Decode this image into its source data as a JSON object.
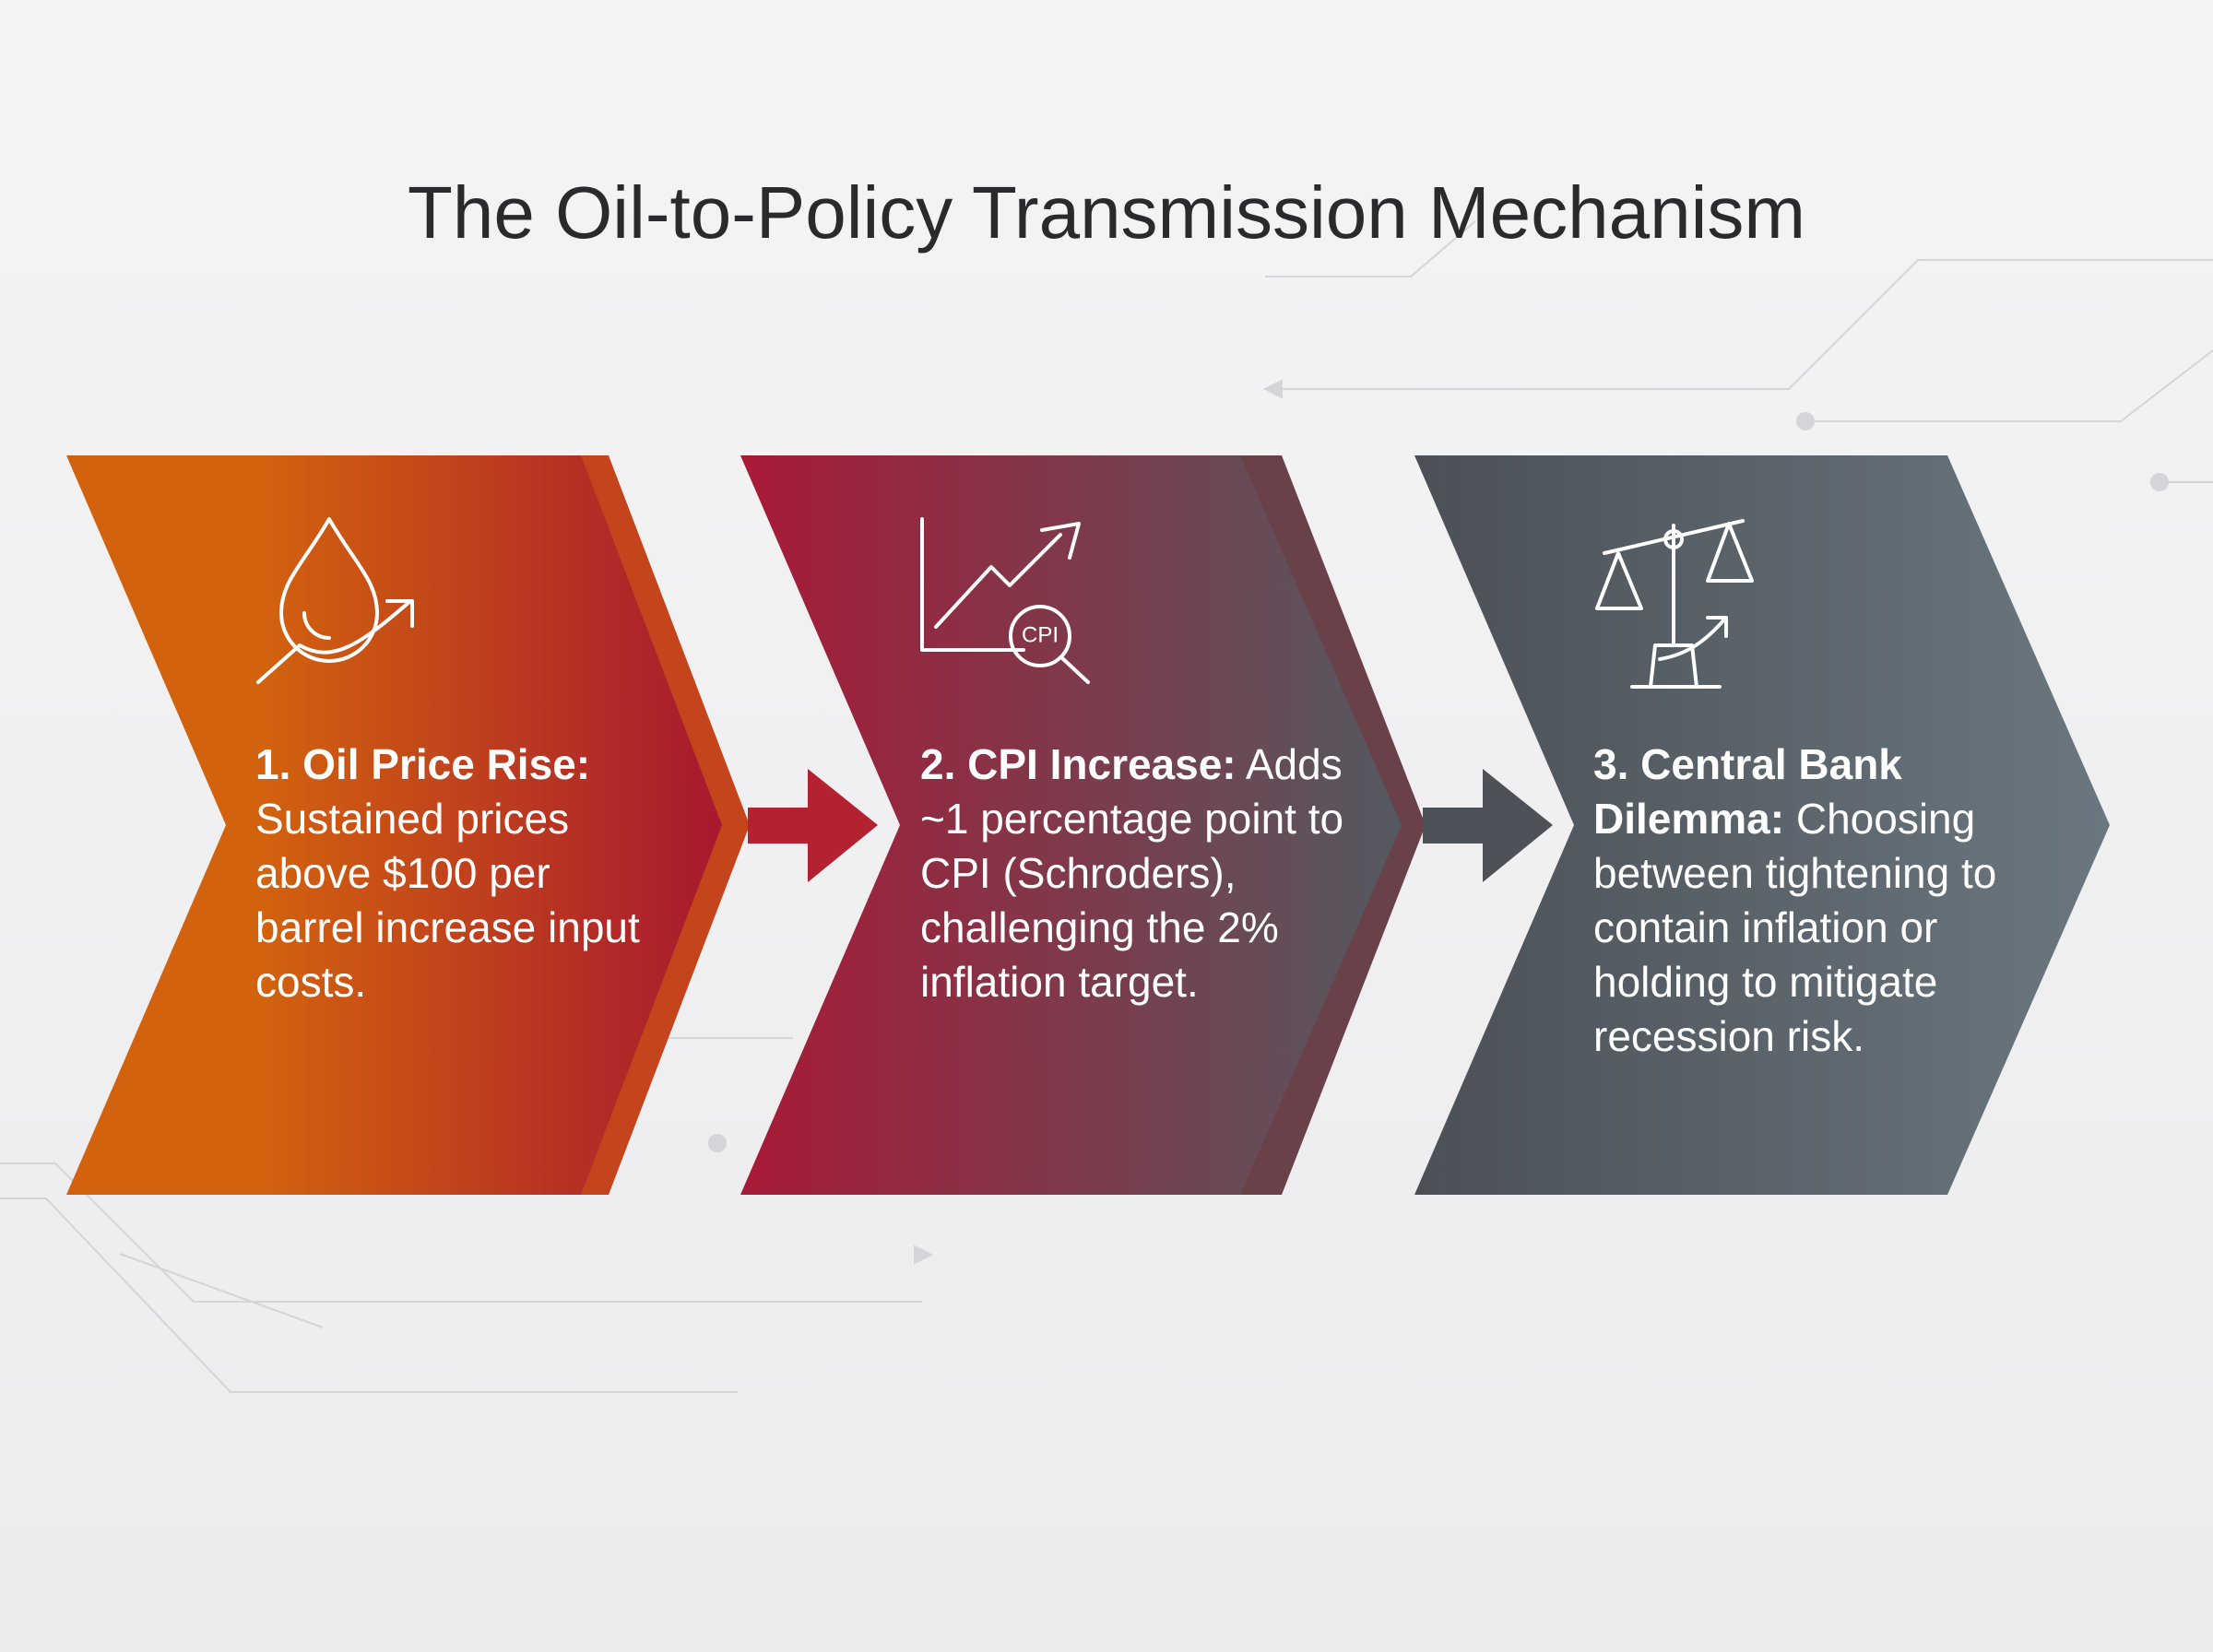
{
  "title": "The Oil-to-Policy Transmission Mechanism",
  "steps": [
    {
      "heading": "1. Oil Price Rise:",
      "body": "Sustained prices above $100 per barrel increase input costs."
    },
    {
      "heading": "2. CPI Increase:",
      "body": "Adds ~1 percentage point to CPI (Schroders), challenging the 2% inflation target.",
      "icon_text": "CPI"
    },
    {
      "heading": "3. Central Bank Dilemma:",
      "body": "Choosing between tightening to contain inflation or holding to mitigate recession risk."
    }
  ]
}
